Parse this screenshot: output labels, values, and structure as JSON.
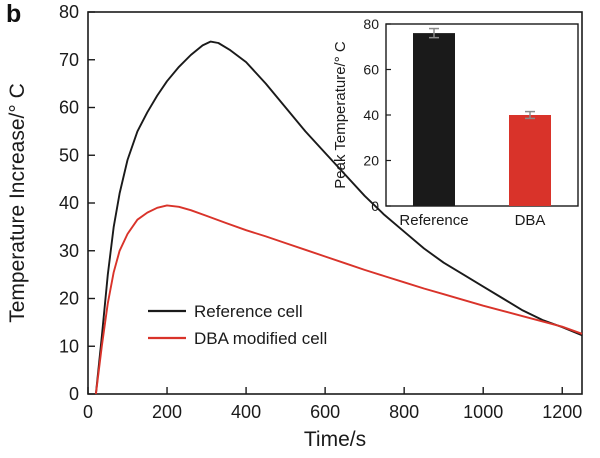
{
  "panel_label": "b",
  "colors": {
    "reference": "#1a1a1a",
    "dba": "#d9332a",
    "error_bar": "#8a8a8a",
    "axis": "#1a1a1a"
  },
  "chart_data": [
    {
      "type": "line",
      "title": "",
      "xlabel": "Time/s",
      "ylabel": "Temperature Increase/° C",
      "xlim": [
        0,
        1250
      ],
      "ylim": [
        0,
        80
      ],
      "xticks": [
        0,
        200,
        400,
        600,
        800,
        1000,
        1200
      ],
      "yticks": [
        0,
        10,
        20,
        30,
        40,
        50,
        60,
        70,
        80
      ],
      "grid": false,
      "legend_position": "inside-lower-left",
      "series": [
        {
          "name": "Reference cell",
          "color_key": "reference",
          "x": [
            20,
            35,
            50,
            65,
            80,
            100,
            125,
            150,
            175,
            200,
            230,
            260,
            290,
            310,
            330,
            360,
            400,
            450,
            500,
            550,
            600,
            650,
            700,
            750,
            800,
            850,
            900,
            950,
            1000,
            1050,
            1100,
            1150,
            1200,
            1250
          ],
          "y": [
            0,
            12,
            25,
            35,
            42,
            49,
            55,
            59,
            62.5,
            65.5,
            68.5,
            71,
            73,
            73.8,
            73.5,
            72,
            69.5,
            65,
            60,
            55,
            50.5,
            46,
            41.5,
            37.5,
            34,
            30.5,
            27.5,
            25,
            22.5,
            20,
            17.5,
            15.5,
            14,
            12.3
          ]
        },
        {
          "name": "DBA modified cell",
          "color_key": "dba",
          "x": [
            20,
            35,
            50,
            65,
            80,
            100,
            125,
            150,
            175,
            200,
            230,
            260,
            300,
            350,
            400,
            450,
            500,
            550,
            600,
            650,
            700,
            750,
            800,
            850,
            900,
            950,
            1000,
            1050,
            1100,
            1150,
            1200,
            1250
          ],
          "y": [
            0,
            10,
            19,
            25.5,
            30,
            33.5,
            36.5,
            38,
            39,
            39.5,
            39.2,
            38.5,
            37.3,
            35.8,
            34.3,
            33,
            31.6,
            30.2,
            28.8,
            27.4,
            26,
            24.7,
            23.4,
            22.1,
            20.9,
            19.7,
            18.5,
            17.4,
            16.3,
            15.2,
            14.1,
            12.6
          ]
        }
      ]
    },
    {
      "type": "bar",
      "ylabel": "Peak Temperature/° C",
      "ylim": [
        0,
        80
      ],
      "yticks": [
        0,
        20,
        40,
        60,
        80
      ],
      "categories": [
        "Reference",
        "DBA"
      ],
      "values": [
        76,
        40
      ],
      "errors": [
        2,
        1.5
      ],
      "bar_color_keys": [
        "reference",
        "dba"
      ]
    }
  ]
}
